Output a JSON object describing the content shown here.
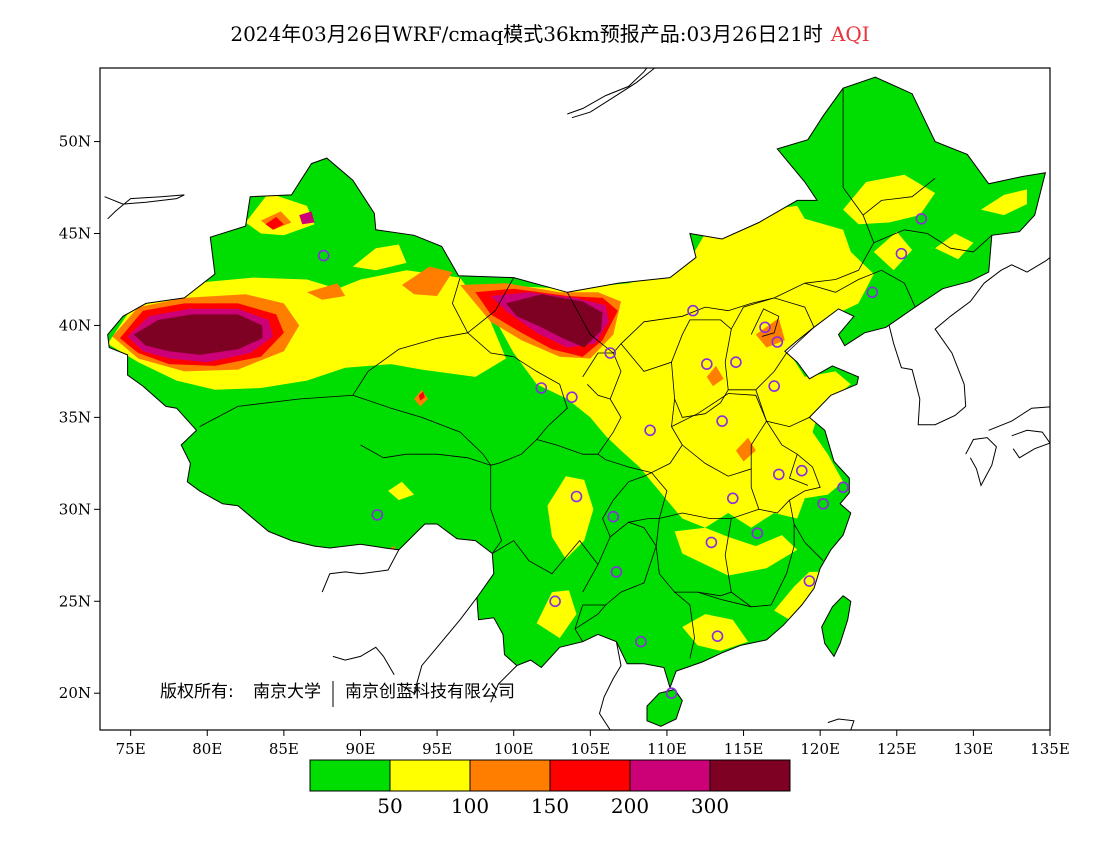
{
  "title": {
    "main": "2024年03月26日WRF/cmaq模式36km预报产品:03月26日21时",
    "variable": "AQI"
  },
  "map": {
    "lon_range": [
      73,
      135
    ],
    "lat_range": [
      18,
      54
    ],
    "lon_ticks": [
      {
        "value": 75,
        "label": "75E"
      },
      {
        "value": 80,
        "label": "80E"
      },
      {
        "value": 85,
        "label": "85E"
      },
      {
        "value": 90,
        "label": "90E"
      },
      {
        "value": 95,
        "label": "95E"
      },
      {
        "value": 100,
        "label": "100E"
      },
      {
        "value": 105,
        "label": "105E"
      },
      {
        "value": 110,
        "label": "110E"
      },
      {
        "value": 115,
        "label": "115E"
      },
      {
        "value": 120,
        "label": "120E"
      },
      {
        "value": 125,
        "label": "125E"
      },
      {
        "value": 130,
        "label": "130E"
      },
      {
        "value": 135,
        "label": "135E"
      }
    ],
    "lat_ticks": [
      {
        "value": 20,
        "label": "20N"
      },
      {
        "value": 25,
        "label": "25N"
      },
      {
        "value": 30,
        "label": "30N"
      },
      {
        "value": 35,
        "label": "35N"
      },
      {
        "value": 40,
        "label": "40N"
      },
      {
        "value": 45,
        "label": "45N"
      },
      {
        "value": 50,
        "label": "50N"
      }
    ],
    "copyright_prefix": "版权所有:",
    "copyright_org1": "南京大学",
    "copyright_org2": "南京创蓝科技有限公司",
    "stations": [
      [
        87.6,
        43.8
      ],
      [
        91.1,
        29.7
      ],
      [
        101.8,
        36.6
      ],
      [
        103.8,
        36.1
      ],
      [
        106.3,
        38.5
      ],
      [
        111.7,
        40.8
      ],
      [
        112.6,
        37.9
      ],
      [
        114.5,
        38.0
      ],
      [
        116.4,
        39.9
      ],
      [
        117.2,
        39.1
      ],
      [
        117.0,
        36.7
      ],
      [
        113.6,
        34.8
      ],
      [
        108.9,
        34.3
      ],
      [
        104.1,
        30.7
      ],
      [
        106.5,
        29.6
      ],
      [
        106.7,
        26.6
      ],
      [
        102.7,
        25.0
      ],
      [
        108.3,
        22.8
      ],
      [
        113.3,
        23.1
      ],
      [
        110.3,
        20.0
      ],
      [
        119.3,
        26.1
      ],
      [
        115.9,
        28.7
      ],
      [
        112.9,
        28.2
      ],
      [
        114.3,
        30.6
      ],
      [
        117.3,
        31.9
      ],
      [
        118.8,
        32.1
      ],
      [
        120.2,
        30.3
      ],
      [
        121.5,
        31.2
      ],
      [
        123.4,
        41.8
      ],
      [
        125.3,
        43.9
      ],
      [
        126.6,
        45.8
      ]
    ]
  },
  "legend": {
    "colors": [
      "#00dd00",
      "#ffff00",
      "#ff7e00",
      "#ff0000",
      "#cc0077",
      "#7e0023"
    ],
    "labels": [
      "50",
      "100",
      "150",
      "200",
      "300"
    ]
  }
}
